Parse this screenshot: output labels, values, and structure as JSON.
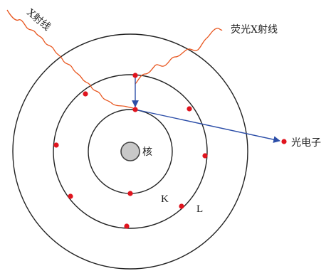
{
  "labels": {
    "incident_xray": "X射线",
    "fluorescent_xray": "荧光X射线",
    "nucleus": "核",
    "photoelectron": "光电子",
    "shell_k": "K",
    "shell_l": "L"
  },
  "colors": {
    "orbit": "#222222",
    "electron": "#e0141e",
    "wave": "#e8551e",
    "arrow": "#2c4ea8",
    "nucleus_fill": "#c8c8c8",
    "nucleus_stroke": "#444444"
  }
}
